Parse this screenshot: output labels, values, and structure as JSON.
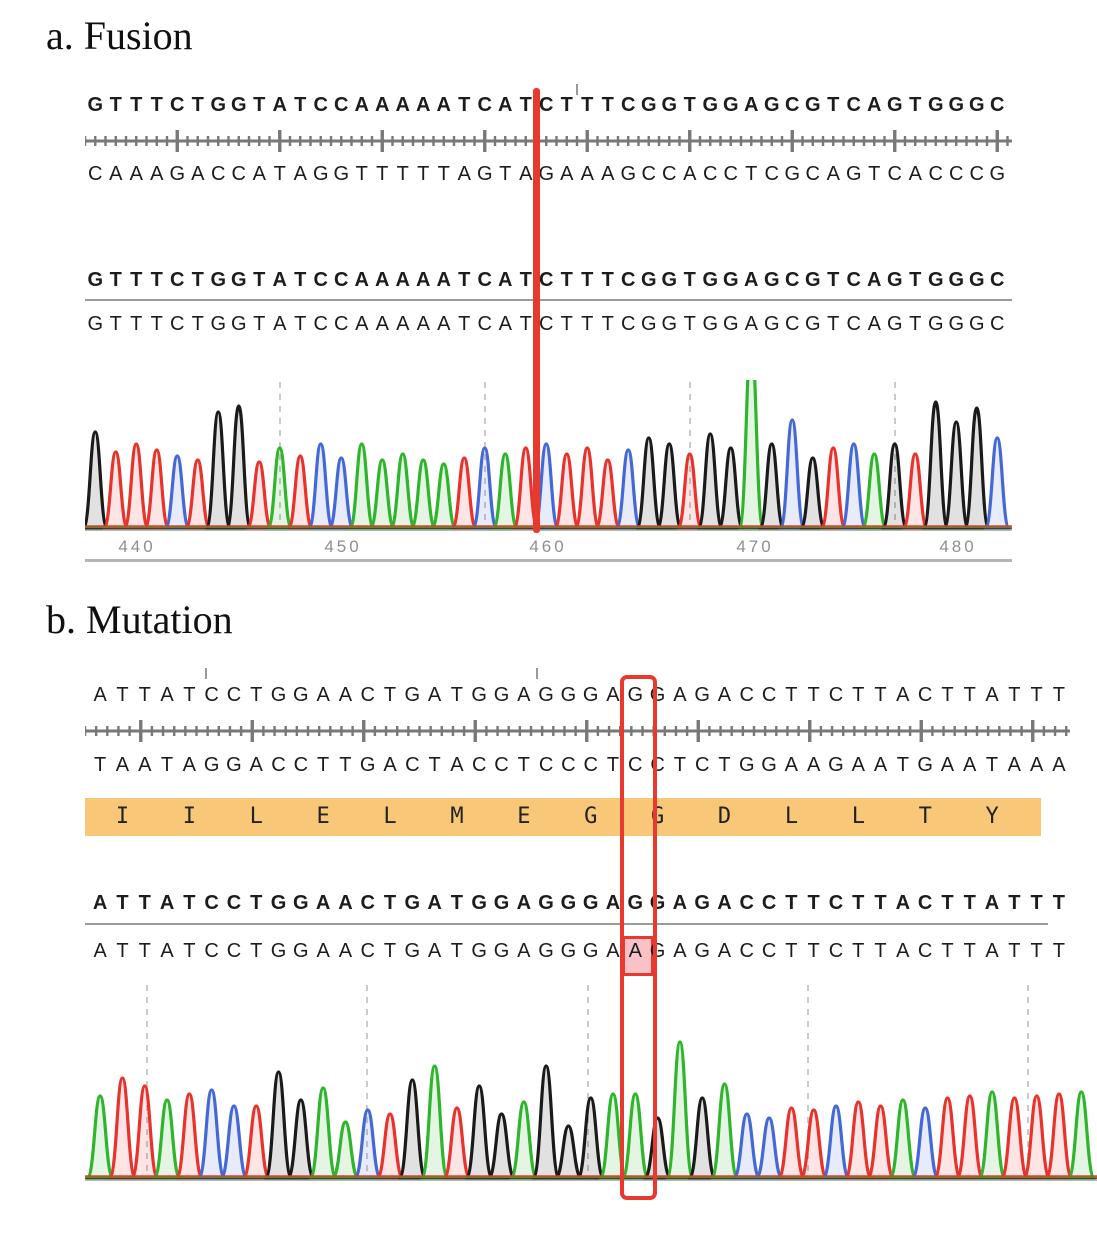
{
  "figure": {
    "panel_a": {
      "label": "a. Fusion",
      "alignment_top": {
        "reference_seq": "GTTTCTGGTATCCAAAAATCATCTTTCGGTGGAGCGTCAGTGGGC",
        "complement_seq": "CAAAGACCATAGGTTTTTAGTAGAAAGCCACCTCGCAGTCACCCG"
      },
      "alignment_bottom": {
        "reference_seq": "GTTTCTGGTATCCAAAAATCATCTTTCGGTGGAGCGTCAGTGGGC",
        "read_seq": "GTTTCTGGTATCCAAAAATCATCTTTCGGTGGAGCGTCAGTGGGC"
      },
      "breakpoint": {
        "after_base": 22,
        "color": "#e8392f"
      }
    },
    "panel_b": {
      "label": "b. Mutation",
      "alignment_top": {
        "reference_seq": "ATTATCCTGGAACTGATGGAGGGAGGAGACCTTCTTACTTATTT",
        "complement_seq": "TAATAGGACCTTGACTACCTCCCTCCTCTGGAAGAATGAATAAA",
        "amino_acids": [
          "I",
          "I",
          "L",
          "E",
          "L",
          "M",
          "E",
          "G",
          "G",
          "D",
          "L",
          "L",
          "T",
          "Y"
        ],
        "amino_band_color": "#f8c878"
      },
      "alignment_bottom": {
        "reference_seq": "ATTATCCTGGAACTGATGGAGGGAGGAGACCTTCTTACTTATTT",
        "read_seq": "ATTATCCTGGAACTGATGGAGGGAAGAGACCTTCTTACTTATTT",
        "mutation_base_index": 25,
        "mutation_ref": "G",
        "mutation_alt": "A"
      },
      "highlight_box": {
        "base_index": 25,
        "color": "#e8392f",
        "fill": "rgba(240,80,95,0.35)"
      }
    }
  },
  "chart_data": [
    {
      "type": "line",
      "name": "panel-a-chromatogram",
      "title": "Sanger trace, fusion breakpoint region",
      "sequence": "GTTTCTGGTATCCAAAAATCATCTTTCGGTGGAGCGTCAGTGGGC",
      "peak_heights": [
        96,
        76,
        84,
        78,
        72,
        68,
        116,
        122,
        66,
        80,
        72,
        84,
        70,
        84,
        68,
        74,
        68,
        64,
        70,
        80,
        74,
        80,
        84,
        74,
        80,
        68,
        78,
        90,
        84,
        74,
        94,
        80,
        188,
        84,
        108,
        70,
        80,
        84,
        74,
        84,
        74,
        126,
        106,
        120,
        90
      ],
      "x_tick_labels": [
        "440",
        "450",
        "460",
        "470",
        "480"
      ],
      "grid": "dashed-vertical",
      "base_colors": {
        "A": "#2eb52c",
        "C": "#4468d6",
        "G": "#1a1a1a",
        "T": "#e8332d"
      }
    },
    {
      "type": "line",
      "name": "panel-b-chromatogram",
      "title": "Sanger trace, mutation region (G>A)",
      "sequence": "ATTATCCTGGAACTGATGGAGGGAAGAGACCTTCTTACTTATTTA",
      "peak_heights": [
        82,
        100,
        92,
        78,
        84,
        88,
        72,
        72,
        106,
        78,
        90,
        56,
        68,
        64,
        98,
        112,
        70,
        92,
        64,
        76,
        112,
        52,
        80,
        84,
        84,
        60,
        136,
        80,
        94,
        64,
        60,
        70,
        68,
        72,
        76,
        72,
        78,
        70,
        80,
        82,
        86,
        80,
        82,
        84,
        86
      ],
      "x_tick_labels": [],
      "grid": "dashed-vertical",
      "base_colors": {
        "A": "#2eb52c",
        "C": "#4468d6",
        "G": "#1a1a1a",
        "T": "#e8332d"
      }
    }
  ],
  "colors": {
    "annotation_red": "#e8392f",
    "amino_band": "#f8c878",
    "ruler_gray": "#787878",
    "axis_text_gray": "#8f8f8f"
  }
}
